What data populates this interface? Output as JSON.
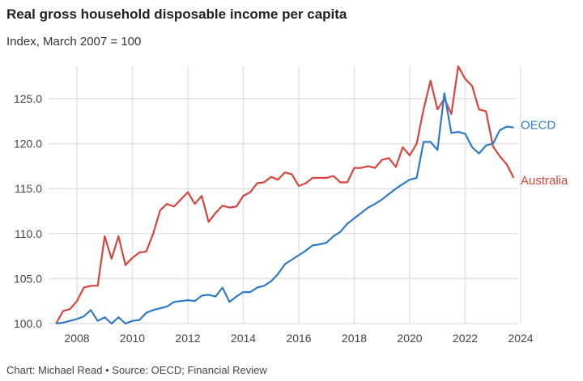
{
  "chart_data": {
    "type": "line",
    "title": "Real gross household disposable income per capita",
    "subtitle": "Index, March 2007 = 100",
    "source": "Chart: Michael Read • Source: OECD; Financial Review",
    "xlabel": "",
    "ylabel": "",
    "xlim": [
      2007,
      2024
    ],
    "ylim": [
      100,
      128.6
    ],
    "x_ticks": [
      "2008",
      "2010",
      "2012",
      "2014",
      "2016",
      "2018",
      "2020",
      "2022",
      "2024"
    ],
    "y_ticks": [
      "100.0",
      "105.0",
      "110.0",
      "115.0",
      "120.0",
      "125.0"
    ],
    "grid": true,
    "legend": "direct labels at right",
    "series": [
      {
        "name": "Australia",
        "color": "#d9453d",
        "start": 2007.25,
        "step": 0.25,
        "values": [
          100.0,
          101.4,
          101.6,
          102.5,
          104.0,
          104.2,
          104.2,
          109.7,
          107.2,
          109.7,
          106.5,
          107.3,
          107.9,
          108.0,
          110.0,
          112.6,
          113.3,
          113.0,
          113.8,
          114.6,
          113.3,
          114.2,
          111.3,
          112.3,
          113.1,
          112.9,
          113.0,
          114.2,
          114.6,
          115.6,
          115.7,
          116.3,
          116.0,
          116.8,
          116.6,
          115.3,
          115.6,
          116.2,
          116.2,
          116.2,
          116.4,
          115.7,
          115.7,
          117.3,
          117.3,
          117.5,
          117.3,
          118.2,
          118.4,
          117.4,
          119.6,
          118.7,
          120.0,
          123.8,
          127.0,
          123.8,
          125.0,
          123.3,
          128.6,
          127.2,
          126.4,
          123.8,
          123.6,
          119.7,
          118.6,
          117.7,
          116.2
        ]
      },
      {
        "name": "OECD",
        "color": "#2f7bc8",
        "start": 2007.25,
        "step": 0.25,
        "values": [
          100.0,
          100.1,
          100.3,
          100.5,
          100.8,
          101.5,
          100.3,
          100.7,
          100.0,
          100.7,
          100.0,
          100.3,
          100.4,
          101.2,
          101.5,
          101.7,
          101.9,
          102.4,
          102.5,
          102.6,
          102.5,
          103.1,
          103.2,
          103.0,
          104.0,
          102.4,
          103.0,
          103.5,
          103.5,
          104.0,
          104.2,
          104.7,
          105.5,
          106.6,
          107.1,
          107.6,
          108.1,
          108.7,
          108.8,
          109.0,
          109.7,
          110.2,
          111.1,
          111.7,
          112.3,
          112.9,
          113.3,
          113.8,
          114.4,
          115.0,
          115.5,
          116.0,
          116.2,
          120.2,
          120.2,
          119.3,
          125.6,
          121.2,
          121.3,
          121.1,
          119.6,
          118.9,
          119.8,
          120.0,
          121.5,
          121.9,
          121.8
        ]
      }
    ]
  }
}
